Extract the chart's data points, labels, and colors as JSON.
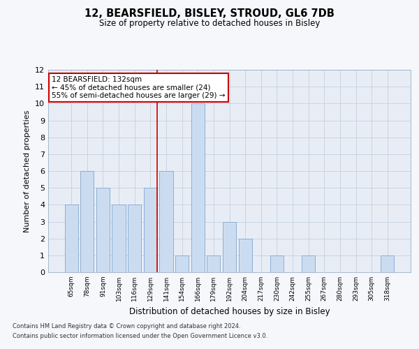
{
  "title1": "12, BEARSFIELD, BISLEY, STROUD, GL6 7DB",
  "title2": "Size of property relative to detached houses in Bisley",
  "xlabel": "Distribution of detached houses by size in Bisley",
  "ylabel": "Number of detached properties",
  "categories": [
    "65sqm",
    "78sqm",
    "91sqm",
    "103sqm",
    "116sqm",
    "129sqm",
    "141sqm",
    "154sqm",
    "166sqm",
    "179sqm",
    "192sqm",
    "204sqm",
    "217sqm",
    "230sqm",
    "242sqm",
    "255sqm",
    "267sqm",
    "280sqm",
    "293sqm",
    "305sqm",
    "318sqm"
  ],
  "values": [
    4,
    6,
    5,
    4,
    4,
    5,
    6,
    1,
    10,
    1,
    3,
    2,
    0,
    1,
    0,
    1,
    0,
    0,
    0,
    0,
    1
  ],
  "bar_color": "#ccdcf0",
  "bar_edge_color": "#8aafd4",
  "bar_linewidth": 0.7,
  "vline_x_index": 5,
  "vline_color": "#cc0000",
  "ylim": [
    0,
    12
  ],
  "yticks": [
    0,
    1,
    2,
    3,
    4,
    5,
    6,
    7,
    8,
    9,
    10,
    11,
    12
  ],
  "annotation_text": "12 BEARSFIELD: 132sqm\n← 45% of detached houses are smaller (24)\n55% of semi-detached houses are larger (29) →",
  "annotation_box_color": "#ffffff",
  "annotation_box_edgecolor": "#cc0000",
  "footnote1": "Contains HM Land Registry data © Crown copyright and database right 2024.",
  "footnote2": "Contains public sector information licensed under the Open Government Licence v3.0.",
  "grid_color": "#c8d4e3",
  "fig_facecolor": "#f5f7fa",
  "plot_bg_color": "#e8edf5"
}
